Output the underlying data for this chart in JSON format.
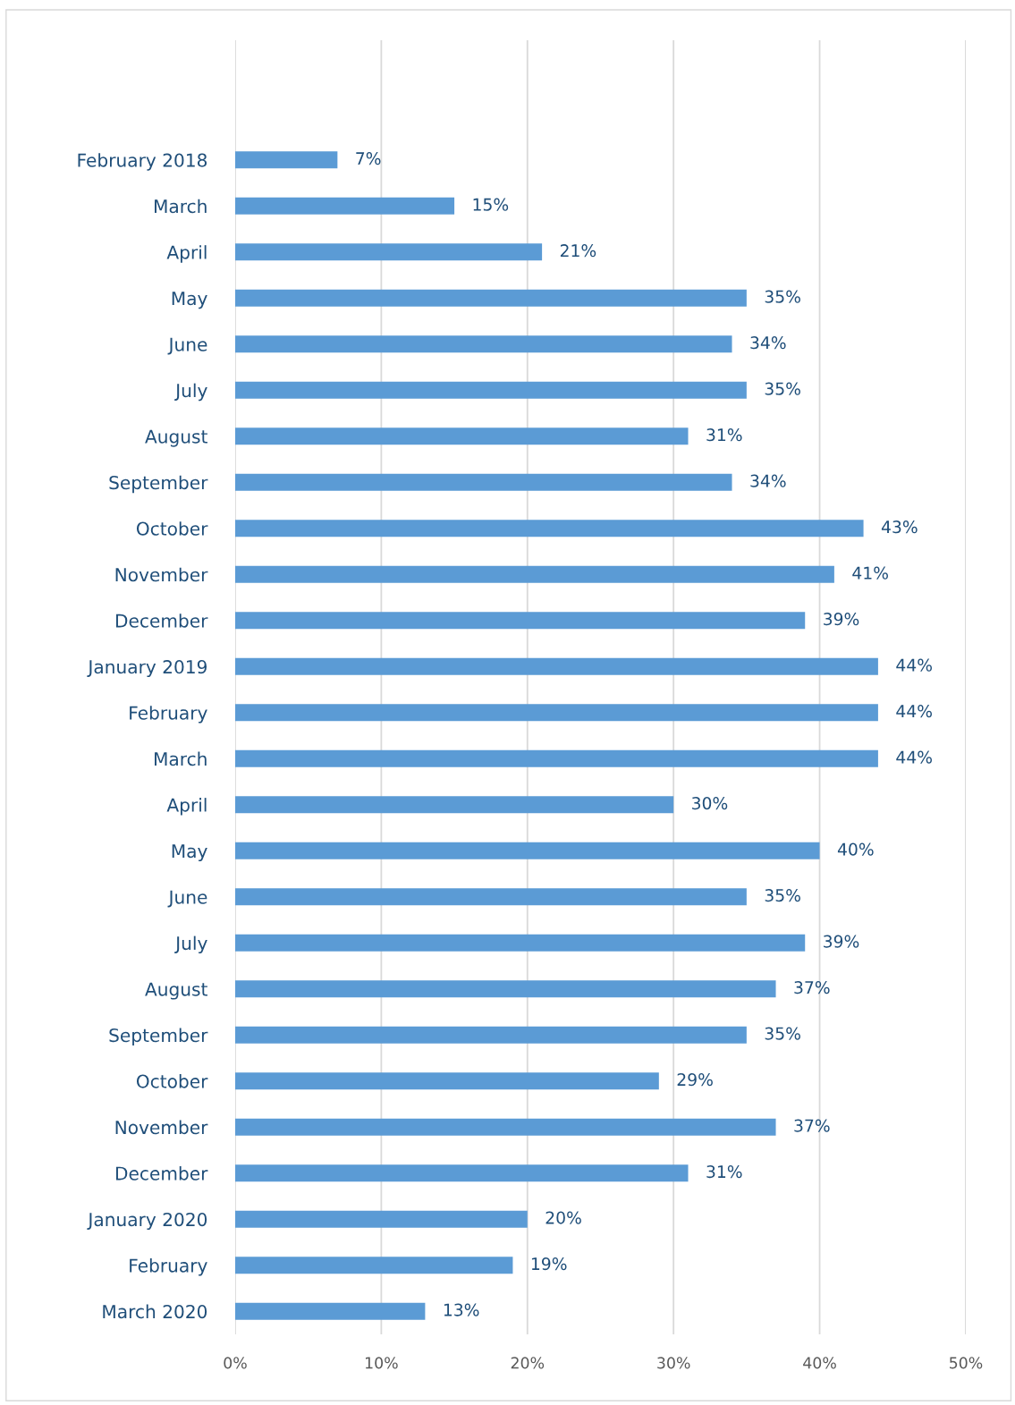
{
  "chart_data": {
    "type": "bar",
    "orientation": "horizontal",
    "categories": [
      "February 2018",
      "March",
      "April",
      "May",
      "June",
      "July",
      "August",
      "September",
      "October",
      "November",
      "December",
      "January 2019",
      "February",
      "March",
      "April",
      "May",
      "June",
      "July",
      "August",
      "September",
      "October",
      "November",
      "December",
      "January 2020",
      "February",
      "March 2020"
    ],
    "values": [
      7,
      15,
      21,
      35,
      34,
      35,
      31,
      34,
      43,
      41,
      39,
      44,
      44,
      44,
      30,
      40,
      35,
      39,
      37,
      35,
      29,
      37,
      31,
      20,
      19,
      13
    ],
    "value_labels": [
      "7%",
      "15%",
      "21%",
      "35%",
      "34%",
      "35%",
      "31%",
      "34%",
      "43%",
      "41%",
      "39%",
      "44%",
      "44%",
      "44%",
      "30%",
      "40%",
      "35%",
      "39%",
      "37%",
      "35%",
      "29%",
      "37%",
      "31%",
      "20%",
      "19%",
      "13%"
    ],
    "color": "#5b9bd5",
    "xlim": [
      0,
      50
    ],
    "xticks": [
      {
        "value": 0,
        "label": "0%"
      },
      {
        "value": 10,
        "label": "10%"
      },
      {
        "value": 20,
        "label": "20%"
      },
      {
        "value": 30,
        "label": "30%"
      },
      {
        "value": 40,
        "label": "40%"
      },
      {
        "value": 50,
        "label": "50%"
      }
    ],
    "grid": "x"
  }
}
